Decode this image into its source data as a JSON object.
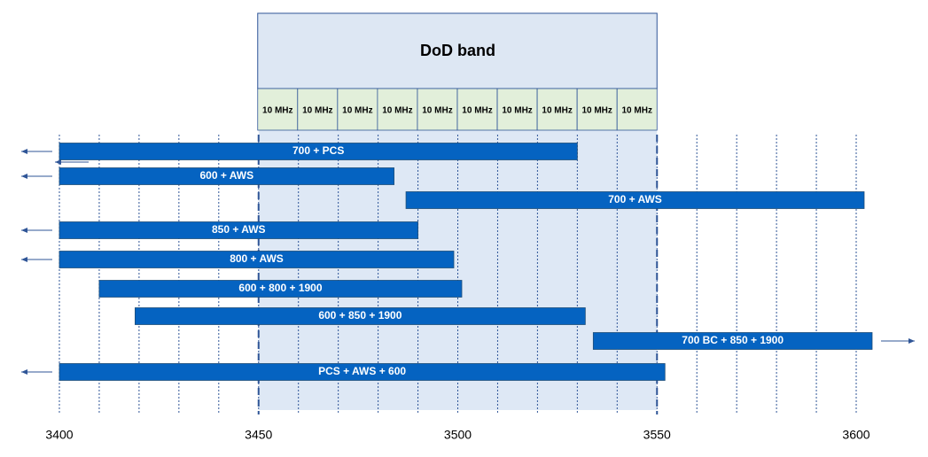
{
  "chart_data": {
    "type": "range_bar",
    "xlim": [
      3400,
      3600
    ],
    "xticks": [
      3400,
      3450,
      3500,
      3550,
      3600
    ],
    "minor_grid": [
      3410,
      3420,
      3430,
      3440,
      3460,
      3470,
      3480,
      3490,
      3510,
      3520,
      3530,
      3540,
      3560,
      3570,
      3580,
      3590
    ],
    "color": "#0563c1",
    "band": {
      "label": "DoD band",
      "from": 3450,
      "to": 3550,
      "cells": [
        "10 MHz",
        "10 MHz",
        "10 MHz",
        "10 MHz",
        "10 MHz",
        "10 MHz",
        "10 MHz",
        "10 MHz",
        "10 MHz",
        "10 MHz"
      ]
    },
    "bars": [
      {
        "name": "700 + PCS",
        "start": 3400,
        "end": 3530,
        "extends": "left"
      },
      {
        "name": "600 + AWS",
        "start": 3400,
        "end": 3484,
        "extends": "left"
      },
      {
        "name": "700 + AWS",
        "start": 3487,
        "end": 3602
      },
      {
        "name": "850 + AWS",
        "start": 3400,
        "end": 3490,
        "extends": "left"
      },
      {
        "name": "800 + AWS",
        "start": 3400,
        "end": 3499,
        "extends": "left"
      },
      {
        "name": "600 + 800 + 1900",
        "start": 3410,
        "end": 3501
      },
      {
        "name": "600 + 850 + 1900",
        "start": 3419,
        "end": 3532
      },
      {
        "name": "700 BC + 850 + 1900",
        "start": 3534,
        "end": 3604,
        "extends": "right"
      },
      {
        "name": "PCS + AWS + 600",
        "start": 3400,
        "end": 3552,
        "extends": "left"
      }
    ]
  }
}
